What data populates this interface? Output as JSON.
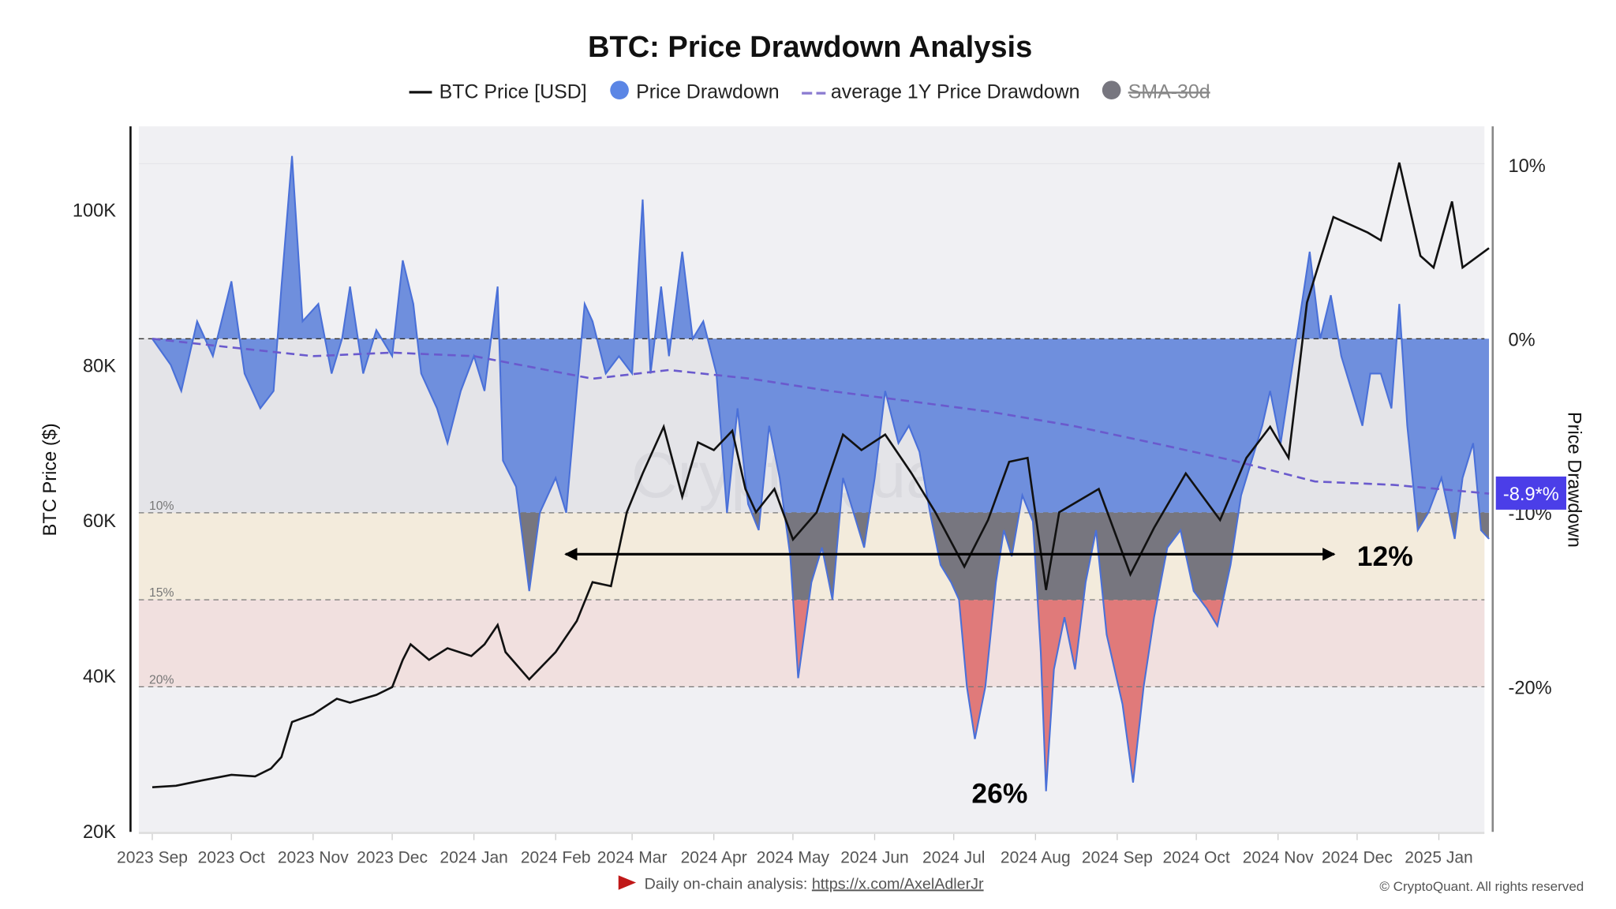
{
  "chart_data": {
    "type": "line",
    "title": "BTC: Price Drawdown Analysis",
    "legend": {
      "placement": "top",
      "items": [
        {
          "label": "BTC Price [USD]",
          "color": "#111111",
          "style": "line"
        },
        {
          "label": "Price Drawdown",
          "color": "#5b86e5",
          "style": "area"
        },
        {
          "label": "average 1Y Price Drawdown",
          "color": "#6a5acd",
          "style": "dashed"
        },
        {
          "label": "SMA-30d",
          "color": "#77767f",
          "style": "hidden"
        }
      ]
    },
    "ylabel_left": "BTC Price ($)",
    "ylabel_right": "Price Drawdown",
    "y_left_ticks": [
      "20K",
      "40K",
      "60K",
      "80K",
      "100K"
    ],
    "y_left_range": [
      20000,
      110000
    ],
    "y_right_ticks": [
      "10%",
      "0%",
      "-10%",
      "-20%"
    ],
    "y_right_range": [
      -28,
      12
    ],
    "x_ticks": [
      "2023 Sep",
      "2023 Oct",
      "2023 Nov",
      "2023 Dec",
      "2024 Jan",
      "2024 Feb",
      "2024 Mar",
      "2024 Apr",
      "2024 May",
      "2024 Jun",
      "2024 Jul",
      "2024 Aug",
      "2024 Sep",
      "2024 Oct",
      "2024 Nov",
      "2024 Dec",
      "2025 Jan"
    ],
    "bands": [
      {
        "label": "10%",
        "level": -10,
        "color": "#f3ebdc"
      },
      {
        "label": "15%",
        "level": -15,
        "color": "#f1e0df"
      },
      {
        "label": "20%",
        "level": -20,
        "color": "#f0f0f3"
      }
    ],
    "colors": {
      "blue_fill": "#6f8fdd",
      "gray_fill": "#77767f",
      "red_fill": "#e07a7a",
      "blue_line": "#4a70d8",
      "price_line": "#111111",
      "avg_line": "#6a5acd",
      "current_label": "#4b3ee8"
    },
    "current_value_label": "-8.9*%",
    "annotations": [
      {
        "text": "12%",
        "type": "double-arrow",
        "from": "2024-02-05",
        "to": "2024-11-20",
        "level": -12.4
      },
      {
        "text": "26%",
        "date": "2024-07-22",
        "level": -26
      }
    ],
    "watermark": "CryptoQuant",
    "series_price": [
      [
        "2023-09-01",
        25600
      ],
      [
        "2023-09-10",
        25800
      ],
      [
        "2023-09-20",
        26500
      ],
      [
        "2023-10-01",
        27200
      ],
      [
        "2023-10-10",
        27000
      ],
      [
        "2023-10-16",
        28000
      ],
      [
        "2023-10-20",
        29500
      ],
      [
        "2023-10-24",
        34000
      ],
      [
        "2023-11-01",
        35000
      ],
      [
        "2023-11-10",
        37000
      ],
      [
        "2023-11-15",
        36500
      ],
      [
        "2023-11-25",
        37500
      ],
      [
        "2023-12-01",
        38500
      ],
      [
        "2023-12-05",
        42000
      ],
      [
        "2023-12-08",
        44000
      ],
      [
        "2023-12-15",
        42000
      ],
      [
        "2023-12-22",
        43500
      ],
      [
        "2023-12-31",
        42500
      ],
      [
        "2024-01-05",
        44000
      ],
      [
        "2024-01-10",
        46500
      ],
      [
        "2024-01-13",
        43000
      ],
      [
        "2024-01-22",
        39500
      ],
      [
        "2024-02-01",
        43000
      ],
      [
        "2024-02-09",
        47000
      ],
      [
        "2024-02-15",
        52000
      ],
      [
        "2024-02-22",
        51500
      ],
      [
        "2024-02-28",
        61000
      ],
      [
        "2024-03-05",
        66000
      ],
      [
        "2024-03-13",
        72000
      ],
      [
        "2024-03-20",
        63000
      ],
      [
        "2024-03-26",
        70000
      ],
      [
        "2024-04-01",
        69000
      ],
      [
        "2024-04-08",
        71500
      ],
      [
        "2024-04-13",
        64000
      ],
      [
        "2024-04-17",
        61000
      ],
      [
        "2024-04-24",
        64000
      ],
      [
        "2024-05-01",
        57500
      ],
      [
        "2024-05-10",
        61000
      ],
      [
        "2024-05-20",
        71000
      ],
      [
        "2024-05-27",
        69000
      ],
      [
        "2024-06-05",
        71000
      ],
      [
        "2024-06-15",
        66000
      ],
      [
        "2024-06-24",
        61000
      ],
      [
        "2024-07-05",
        54000
      ],
      [
        "2024-07-14",
        60000
      ],
      [
        "2024-07-22",
        67500
      ],
      [
        "2024-07-29",
        68000
      ],
      [
        "2024-08-05",
        51000
      ],
      [
        "2024-08-10",
        61000
      ],
      [
        "2024-08-25",
        64000
      ],
      [
        "2024-09-06",
        53000
      ],
      [
        "2024-09-15",
        59000
      ],
      [
        "2024-09-27",
        66000
      ],
      [
        "2024-10-10",
        60000
      ],
      [
        "2024-10-20",
        68000
      ],
      [
        "2024-10-29",
        72000
      ],
      [
        "2024-11-05",
        68000
      ],
      [
        "2024-11-12",
        88000
      ],
      [
        "2024-11-22",
        99000
      ],
      [
        "2024-12-05",
        97000
      ],
      [
        "2024-12-10",
        96000
      ],
      [
        "2024-12-17",
        106000
      ],
      [
        "2024-12-25",
        94000
      ],
      [
        "2024-12-30",
        92500
      ],
      [
        "2025-01-06",
        101000
      ],
      [
        "2025-01-10",
        92500
      ],
      [
        "2025-01-20",
        95000
      ]
    ],
    "series_drawdown": [
      [
        "2023-09-01",
        0
      ],
      [
        "2023-09-08",
        -1.5
      ],
      [
        "2023-09-12",
        -3
      ],
      [
        "2023-09-18",
        1
      ],
      [
        "2023-09-24",
        -1
      ],
      [
        "2023-10-01",
        3.3
      ],
      [
        "2023-10-06",
        -2
      ],
      [
        "2023-10-12",
        -4
      ],
      [
        "2023-10-17",
        -3
      ],
      [
        "2023-10-20",
        3
      ],
      [
        "2023-10-24",
        10.5
      ],
      [
        "2023-10-28",
        1
      ],
      [
        "2023-11-03",
        2
      ],
      [
        "2023-11-08",
        -2
      ],
      [
        "2023-11-12",
        0
      ],
      [
        "2023-11-15",
        3
      ],
      [
        "2023-11-20",
        -2
      ],
      [
        "2023-11-25",
        0.5
      ],
      [
        "2023-12-01",
        -1
      ],
      [
        "2023-12-05",
        4.5
      ],
      [
        "2023-12-09",
        2
      ],
      [
        "2023-12-12",
        -2
      ],
      [
        "2023-12-18",
        -4
      ],
      [
        "2023-12-22",
        -6
      ],
      [
        "2023-12-27",
        -3
      ],
      [
        "2024-01-01",
        -1
      ],
      [
        "2024-01-05",
        -3
      ],
      [
        "2024-01-10",
        3
      ],
      [
        "2024-01-12",
        -7
      ],
      [
        "2024-01-17",
        -8.5
      ],
      [
        "2024-01-22",
        -14.5
      ],
      [
        "2024-01-26",
        -10
      ],
      [
        "2024-02-01",
        -8
      ],
      [
        "2024-02-05",
        -10
      ],
      [
        "2024-02-09",
        -3
      ],
      [
        "2024-02-12",
        2
      ],
      [
        "2024-02-15",
        1
      ],
      [
        "2024-02-20",
        -2
      ],
      [
        "2024-02-25",
        -1
      ],
      [
        "2024-03-01",
        -2
      ],
      [
        "2024-03-05",
        8
      ],
      [
        "2024-03-08",
        -2
      ],
      [
        "2024-03-12",
        3
      ],
      [
        "2024-03-15",
        -1
      ],
      [
        "2024-03-20",
        5
      ],
      [
        "2024-03-24",
        0
      ],
      [
        "2024-03-28",
        1
      ],
      [
        "2024-04-02",
        -2
      ],
      [
        "2024-04-06",
        -10
      ],
      [
        "2024-04-10",
        -4
      ],
      [
        "2024-04-14",
        -9.5
      ],
      [
        "2024-04-18",
        -11
      ],
      [
        "2024-04-22",
        -5
      ],
      [
        "2024-04-26",
        -8
      ],
      [
        "2024-04-30",
        -12.5
      ],
      [
        "2024-05-03",
        -19.5
      ],
      [
        "2024-05-08",
        -14
      ],
      [
        "2024-05-12",
        -12
      ],
      [
        "2024-05-16",
        -15
      ],
      [
        "2024-05-20",
        -8
      ],
      [
        "2024-05-24",
        -10
      ],
      [
        "2024-05-28",
        -12
      ],
      [
        "2024-06-01",
        -8
      ],
      [
        "2024-06-05",
        -3
      ],
      [
        "2024-06-10",
        -6
      ],
      [
        "2024-06-14",
        -5
      ],
      [
        "2024-06-18",
        -6.5
      ],
      [
        "2024-06-22",
        -10
      ],
      [
        "2024-06-26",
        -13
      ],
      [
        "2024-06-30",
        -14
      ],
      [
        "2024-07-03",
        -15
      ],
      [
        "2024-07-06",
        -20
      ],
      [
        "2024-07-09",
        -23
      ],
      [
        "2024-07-13",
        -20
      ],
      [
        "2024-07-17",
        -14
      ],
      [
        "2024-07-20",
        -11
      ],
      [
        "2024-07-23",
        -12.5
      ],
      [
        "2024-07-27",
        -9
      ],
      [
        "2024-07-31",
        -10.5
      ],
      [
        "2024-08-03",
        -18
      ],
      [
        "2024-08-05",
        -26
      ],
      [
        "2024-08-08",
        -19
      ],
      [
        "2024-08-12",
        -16
      ],
      [
        "2024-08-16",
        -19
      ],
      [
        "2024-08-20",
        -14
      ],
      [
        "2024-08-24",
        -11
      ],
      [
        "2024-08-28",
        -17
      ],
      [
        "2024-09-03",
        -21
      ],
      [
        "2024-09-07",
        -25.5
      ],
      [
        "2024-09-11",
        -20
      ],
      [
        "2024-09-15",
        -16
      ],
      [
        "2024-09-20",
        -12
      ],
      [
        "2024-09-25",
        -11
      ],
      [
        "2024-09-30",
        -14.5
      ],
      [
        "2024-10-05",
        -15.5
      ],
      [
        "2024-10-09",
        -16.5
      ],
      [
        "2024-10-14",
        -13
      ],
      [
        "2024-10-18",
        -9
      ],
      [
        "2024-10-22",
        -7
      ],
      [
        "2024-10-26",
        -5
      ],
      [
        "2024-10-29",
        -3
      ],
      [
        "2024-11-02",
        -6
      ],
      [
        "2024-11-06",
        -2
      ],
      [
        "2024-11-10",
        2
      ],
      [
        "2024-11-13",
        5
      ],
      [
        "2024-11-17",
        0
      ],
      [
        "2024-11-21",
        2.5
      ],
      [
        "2024-11-25",
        -1
      ],
      [
        "2024-11-29",
        -3
      ],
      [
        "2024-12-03",
        -5
      ],
      [
        "2024-12-06",
        -2
      ],
      [
        "2024-12-10",
        -2
      ],
      [
        "2024-12-14",
        -4
      ],
      [
        "2024-12-17",
        2
      ],
      [
        "2024-12-20",
        -5
      ],
      [
        "2024-12-24",
        -11
      ],
      [
        "2024-12-28",
        -10
      ],
      [
        "2025-01-02",
        -8
      ],
      [
        "2025-01-07",
        -11.5
      ],
      [
        "2025-01-10",
        -8
      ],
      [
        "2025-01-14",
        -6
      ],
      [
        "2025-01-17",
        -11
      ],
      [
        "2025-01-20",
        -11.5
      ]
    ],
    "series_avg_1y_drawdown": [
      [
        "2023-09-01",
        0
      ],
      [
        "2023-10-01",
        -0.5
      ],
      [
        "2023-11-01",
        -1
      ],
      [
        "2023-12-01",
        -0.8
      ],
      [
        "2024-01-01",
        -1
      ],
      [
        "2024-02-15",
        -2.3
      ],
      [
        "2024-03-15",
        -1.8
      ],
      [
        "2024-04-15",
        -2.3
      ],
      [
        "2024-05-15",
        -3
      ],
      [
        "2024-06-15",
        -3.6
      ],
      [
        "2024-07-15",
        -4.2
      ],
      [
        "2024-08-15",
        -5
      ],
      [
        "2024-09-15",
        -6
      ],
      [
        "2024-10-15",
        -7
      ],
      [
        "2024-11-15",
        -8.2
      ],
      [
        "2024-12-15",
        -8.4
      ],
      [
        "2025-01-20",
        -8.9
      ]
    ]
  },
  "footer": {
    "analysis_label": "Daily on-chain analysis: ",
    "analysis_link": "https://x.com/AxelAdlerJr",
    "copyright": "© CryptoQuant. All rights reserved"
  }
}
